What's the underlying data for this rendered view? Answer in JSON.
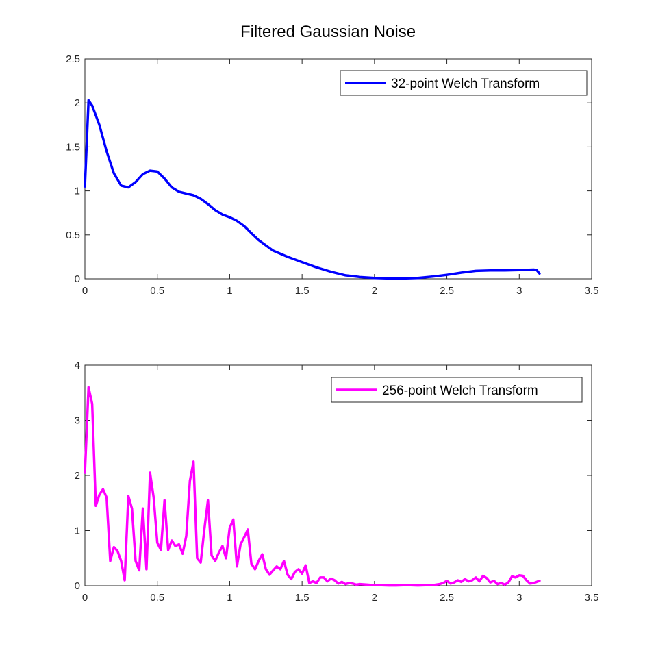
{
  "figure": {
    "title": "Filtered Gaussian Noise"
  },
  "chart_data": [
    {
      "type": "line",
      "xlim": [
        0,
        3.5
      ],
      "ylim": [
        0,
        2.5
      ],
      "xticks": [
        0,
        0.5,
        1,
        1.5,
        2,
        2.5,
        3,
        3.5
      ],
      "xtick_labels": [
        "0",
        "0.5",
        "1",
        "1.5",
        "2",
        "2.5",
        "3",
        "3.5"
      ],
      "yticks": [
        0,
        0.5,
        1,
        1.5,
        2,
        2.5
      ],
      "ytick_labels": [
        "0",
        "0.5",
        "1",
        "1.5",
        "2",
        "2.5"
      ],
      "grid": false,
      "legend_position": "top-right",
      "series": [
        {
          "name": "32-point Welch Transform",
          "color": "#0000ff",
          "x": [
            0,
            0.025,
            0.05,
            0.1,
            0.15,
            0.2,
            0.25,
            0.3,
            0.35,
            0.4,
            0.45,
            0.5,
            0.55,
            0.6,
            0.65,
            0.7,
            0.75,
            0.8,
            0.85,
            0.9,
            0.95,
            1.0,
            1.05,
            1.1,
            1.15,
            1.2,
            1.25,
            1.3,
            1.4,
            1.5,
            1.6,
            1.7,
            1.8,
            1.9,
            2.0,
            2.1,
            2.2,
            2.3,
            2.4,
            2.5,
            2.6,
            2.7,
            2.8,
            2.9,
            3.0,
            3.1,
            3.12,
            3.14
          ],
          "y": [
            1.05,
            2.03,
            1.97,
            1.75,
            1.45,
            1.2,
            1.06,
            1.04,
            1.1,
            1.19,
            1.23,
            1.22,
            1.14,
            1.04,
            0.99,
            0.97,
            0.95,
            0.91,
            0.85,
            0.78,
            0.73,
            0.7,
            0.66,
            0.6,
            0.52,
            0.44,
            0.38,
            0.32,
            0.25,
            0.19,
            0.13,
            0.08,
            0.04,
            0.02,
            0.01,
            0.005,
            0.005,
            0.01,
            0.025,
            0.045,
            0.07,
            0.09,
            0.095,
            0.095,
            0.1,
            0.105,
            0.1,
            0.06
          ]
        }
      ]
    },
    {
      "type": "line",
      "xlim": [
        0,
        3.5
      ],
      "ylim": [
        0,
        4
      ],
      "xticks": [
        0,
        0.5,
        1,
        1.5,
        2,
        2.5,
        3,
        3.5
      ],
      "xtick_labels": [
        "0",
        "0.5",
        "1",
        "1.5",
        "2",
        "2.5",
        "3",
        "3.5"
      ],
      "yticks": [
        0,
        1,
        2,
        3,
        4
      ],
      "ytick_labels": [
        "0",
        "1",
        "2",
        "3",
        "4"
      ],
      "grid": false,
      "legend_position": "top-right",
      "series": [
        {
          "name": "256-point Welch Transform",
          "color": "#ff00ff",
          "x": [
            0,
            0.025,
            0.05,
            0.075,
            0.1,
            0.125,
            0.15,
            0.175,
            0.2,
            0.225,
            0.25,
            0.275,
            0.3,
            0.325,
            0.35,
            0.375,
            0.4,
            0.425,
            0.45,
            0.475,
            0.5,
            0.525,
            0.55,
            0.575,
            0.6,
            0.625,
            0.65,
            0.675,
            0.7,
            0.725,
            0.75,
            0.775,
            0.8,
            0.825,
            0.85,
            0.875,
            0.9,
            0.925,
            0.95,
            0.975,
            1.0,
            1.025,
            1.05,
            1.075,
            1.1,
            1.125,
            1.15,
            1.175,
            1.2,
            1.225,
            1.25,
            1.275,
            1.3,
            1.325,
            1.35,
            1.375,
            1.4,
            1.425,
            1.45,
            1.475,
            1.5,
            1.525,
            1.55,
            1.575,
            1.6,
            1.625,
            1.65,
            1.675,
            1.7,
            1.725,
            1.75,
            1.775,
            1.8,
            1.825,
            1.85,
            1.875,
            1.9,
            1.95,
            2.0,
            2.05,
            2.1,
            2.15,
            2.2,
            2.25,
            2.3,
            2.35,
            2.4,
            2.45,
            2.475,
            2.5,
            2.525,
            2.55,
            2.575,
            2.6,
            2.625,
            2.65,
            2.675,
            2.7,
            2.725,
            2.75,
            2.775,
            2.8,
            2.825,
            2.85,
            2.875,
            2.9,
            2.925,
            2.95,
            2.975,
            3.0,
            3.025,
            3.05,
            3.075,
            3.1,
            3.14
          ],
          "y": [
            2.05,
            3.6,
            3.3,
            1.45,
            1.65,
            1.75,
            1.6,
            0.45,
            0.7,
            0.63,
            0.45,
            0.1,
            1.63,
            1.4,
            0.45,
            0.28,
            1.4,
            0.3,
            2.05,
            1.6,
            0.78,
            0.65,
            1.55,
            0.65,
            0.82,
            0.72,
            0.75,
            0.58,
            0.9,
            1.9,
            2.25,
            0.5,
            0.42,
            1.02,
            1.55,
            0.55,
            0.45,
            0.6,
            0.72,
            0.5,
            1.05,
            1.2,
            0.35,
            0.75,
            0.88,
            1.02,
            0.4,
            0.3,
            0.45,
            0.57,
            0.3,
            0.2,
            0.28,
            0.35,
            0.3,
            0.45,
            0.2,
            0.12,
            0.25,
            0.3,
            0.22,
            0.37,
            0.05,
            0.08,
            0.05,
            0.15,
            0.15,
            0.08,
            0.13,
            0.1,
            0.04,
            0.07,
            0.03,
            0.05,
            0.04,
            0.02,
            0.03,
            0.02,
            0.01,
            0.01,
            0.005,
            0.005,
            0.01,
            0.01,
            0.005,
            0.01,
            0.01,
            0.03,
            0.05,
            0.09,
            0.04,
            0.06,
            0.1,
            0.07,
            0.12,
            0.08,
            0.1,
            0.15,
            0.08,
            0.18,
            0.14,
            0.06,
            0.09,
            0.03,
            0.05,
            0.02,
            0.06,
            0.17,
            0.15,
            0.19,
            0.18,
            0.1,
            0.04,
            0.05,
            0.09
          ]
        }
      ]
    }
  ]
}
